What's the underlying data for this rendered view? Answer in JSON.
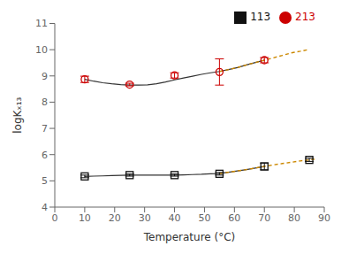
{
  "chart_data": {
    "type": "scatter",
    "xlabel": "Temperature (°C)",
    "ylabel": "logKₓ₁₃",
    "xlim": [
      0,
      90
    ],
    "ylim": [
      4,
      11
    ],
    "xticks": [
      0,
      10,
      20,
      30,
      40,
      50,
      60,
      70,
      80,
      90
    ],
    "yticks": [
      4,
      5,
      6,
      7,
      8,
      9,
      10,
      11
    ],
    "legend": "upper right",
    "series": [
      {
        "name": "213",
        "color": "#cc0000",
        "marker": "circle",
        "x": [
          10,
          25,
          40,
          55,
          70
        ],
        "values": [
          8.87,
          8.67,
          9.02,
          9.15,
          9.6
        ],
        "yerr": [
          0.12,
          0.05,
          0.1,
          0.5,
          0.1
        ]
      },
      {
        "name": "113",
        "color": "#111111",
        "marker": "square",
        "x": [
          10,
          25,
          40,
          55,
          70,
          85
        ],
        "values": [
          5.17,
          5.22,
          5.22,
          5.27,
          5.55,
          5.8
        ],
        "yerr": [
          0.05,
          0.04,
          0.04,
          0.05,
          0.13,
          0.06
        ]
      }
    ],
    "lines": [
      {
        "type": "line",
        "color": "#333333",
        "line_style": "solid",
        "x": [
          10,
          13,
          16,
          19,
          22,
          25,
          28,
          31,
          34,
          37,
          40,
          43,
          46,
          49,
          52,
          55,
          58,
          61,
          64,
          67,
          70
        ],
        "values": [
          8.87,
          8.8,
          8.74,
          8.7,
          8.67,
          8.65,
          8.65,
          8.66,
          8.7,
          8.77,
          8.85,
          8.92,
          8.99,
          9.06,
          9.12,
          9.17,
          9.24,
          9.32,
          9.42,
          9.51,
          9.6
        ]
      },
      {
        "type": "line",
        "color": "#333333",
        "line_style": "solid",
        "x": [
          10,
          13,
          16,
          19,
          22,
          25,
          28,
          31,
          34,
          37,
          40,
          43,
          46,
          49,
          52,
          55,
          58,
          61,
          64,
          67,
          70
        ],
        "values": [
          5.17,
          5.18,
          5.19,
          5.2,
          5.21,
          5.22,
          5.22,
          5.22,
          5.22,
          5.22,
          5.22,
          5.23,
          5.24,
          5.25,
          5.27,
          5.28,
          5.33,
          5.38,
          5.43,
          5.49,
          5.55
        ]
      },
      {
        "type": "line",
        "color": "#cc8800",
        "line_style": "dashed",
        "x": [
          55,
          58,
          61,
          64,
          67,
          70,
          73,
          76,
          79,
          82,
          85
        ],
        "values": [
          9.17,
          9.24,
          9.32,
          9.42,
          9.51,
          9.6,
          9.69,
          9.78,
          9.88,
          9.94,
          10.01
        ]
      },
      {
        "type": "line",
        "color": "#cc8800",
        "line_style": "dashed",
        "x": [
          55,
          58,
          61,
          64,
          67,
          70,
          73,
          76,
          79,
          82,
          85,
          87
        ],
        "values": [
          5.28,
          5.33,
          5.38,
          5.43,
          5.49,
          5.55,
          5.61,
          5.66,
          5.71,
          5.76,
          5.8,
          5.83
        ]
      }
    ]
  }
}
